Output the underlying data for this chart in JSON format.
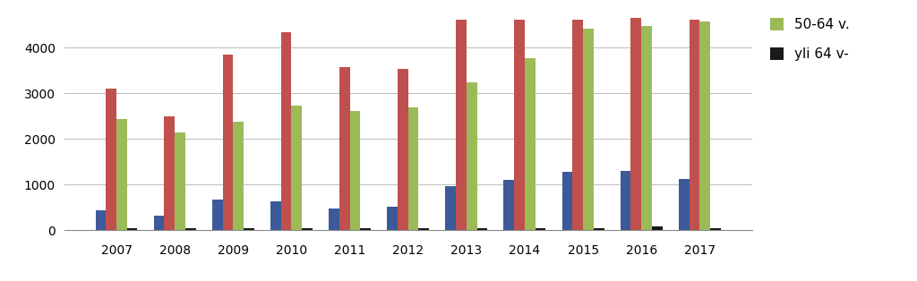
{
  "years": [
    2007,
    2008,
    2009,
    2010,
    2011,
    2012,
    2013,
    2014,
    2015,
    2016,
    2017
  ],
  "blue_values": [
    450,
    330,
    680,
    630,
    470,
    510,
    970,
    1100,
    1280,
    1300,
    1120
  ],
  "red_values": [
    3100,
    2500,
    3850,
    4350,
    3580,
    3530,
    4620,
    4620,
    4620,
    4660,
    4620
  ],
  "green_values": [
    2430,
    2150,
    2380,
    2730,
    2620,
    2700,
    3250,
    3780,
    4420,
    4480,
    4580
  ],
  "black_values": [
    40,
    40,
    40,
    40,
    40,
    40,
    40,
    40,
    40,
    90,
    40
  ],
  "blue_color": "#3C5A9A",
  "red_color": "#C0504D",
  "green_color": "#9BBB59",
  "black_color": "#1A1A1A",
  "legend_labels": [
    "50-64 v.",
    "yli 64 v-"
  ],
  "ylim": [
    0,
    4800
  ],
  "yticks": [
    0,
    1000,
    2000,
    3000,
    4000
  ],
  "background_color": "#FFFFFF",
  "grid_color": "#BBBBBB",
  "bar_width": 0.18,
  "figsize": [
    10.24,
    3.14
  ],
  "dpi": 100
}
